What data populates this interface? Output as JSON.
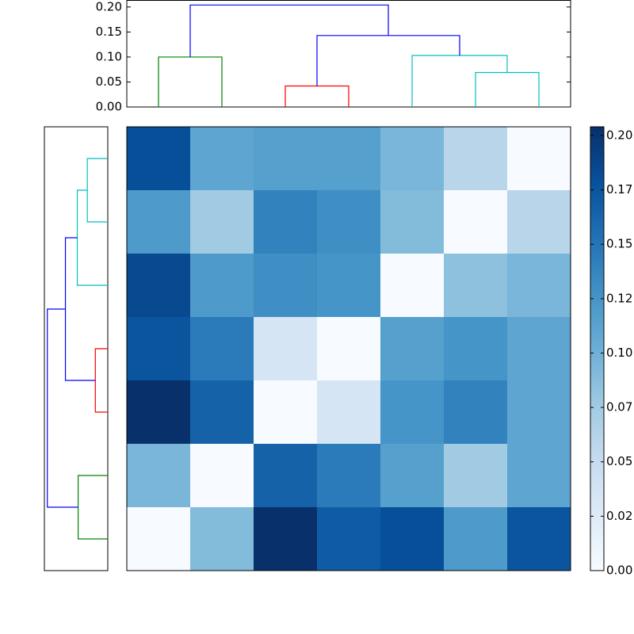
{
  "chart_data": [
    {
      "type": "dendrogram",
      "orientation": "top",
      "ylim": [
        0,
        0.214
      ],
      "yticks": [
        {
          "value": 0,
          "label": "0.00"
        },
        0.05,
        {
          "value": 0.1,
          "label": "0.10"
        },
        0.15,
        {
          "value": 0.2,
          "label": "0.20"
        }
      ],
      "xlim": [
        0,
        70
      ],
      "links": [
        {
          "color": "#008000",
          "icoord": [
            5,
            5,
            15,
            15
          ],
          "dcoord": [
            0,
            0.1,
            0.1,
            0
          ]
        },
        {
          "color": "#ff0000",
          "icoord": [
            25,
            25,
            35,
            35
          ],
          "dcoord": [
            0,
            0.042,
            0.042,
            0
          ]
        },
        {
          "color": "#00bfbf",
          "icoord": [
            55,
            55,
            65,
            65
          ],
          "dcoord": [
            0,
            0.069,
            0.069,
            0
          ]
        },
        {
          "color": "#00bfbf",
          "icoord": [
            45,
            45,
            60,
            60
          ],
          "dcoord": [
            0,
            0.103,
            0.103,
            0.069
          ]
        },
        {
          "color": "#0000ff",
          "icoord": [
            30,
            30,
            52.5,
            52.5
          ],
          "dcoord": [
            0.042,
            0.143,
            0.143,
            0.103
          ]
        },
        {
          "color": "#0000ff",
          "icoord": [
            10,
            10,
            41.25,
            41.25
          ],
          "dcoord": [
            0.1,
            0.204,
            0.204,
            0.143
          ]
        }
      ]
    },
    {
      "type": "dendrogram",
      "orientation": "left",
      "xlim": [
        0.214,
        0
      ],
      "ylim": [
        0,
        70
      ],
      "links": [
        {
          "color": "#008000",
          "icoord": [
            5,
            5,
            15,
            15
          ],
          "dcoord": [
            0,
            0.1,
            0.1,
            0
          ]
        },
        {
          "color": "#ff0000",
          "icoord": [
            25,
            25,
            35,
            35
          ],
          "dcoord": [
            0,
            0.042,
            0.042,
            0
          ]
        },
        {
          "color": "#00bfbf",
          "icoord": [
            55,
            55,
            65,
            65
          ],
          "dcoord": [
            0,
            0.069,
            0.069,
            0
          ]
        },
        {
          "color": "#00bfbf",
          "icoord": [
            45,
            45,
            60,
            60
          ],
          "dcoord": [
            0,
            0.103,
            0.103,
            0.069
          ]
        },
        {
          "color": "#0000ff",
          "icoord": [
            30,
            30,
            52.5,
            52.5
          ],
          "dcoord": [
            0.042,
            0.143,
            0.143,
            0.103
          ]
        },
        {
          "color": "#0000ff",
          "icoord": [
            10,
            10,
            41.25,
            41.25
          ],
          "dcoord": [
            0.1,
            0.204,
            0.204,
            0.143
          ]
        }
      ]
    },
    {
      "type": "heatmap",
      "colormap": [
        "#f7fbff",
        "#deebf7",
        "#c6dbef",
        "#9ecae1",
        "#6baed6",
        "#4292c6",
        "#2171b5",
        "#08519c",
        "#08306b"
      ],
      "clim": [
        0,
        0.204
      ],
      "cticks": [
        {
          "value": 0,
          "label": "0.00"
        },
        {
          "value": 0.025,
          "label": "0.02"
        },
        {
          "value": 0.05,
          "label": "0.05"
        },
        {
          "value": 0.075,
          "label": "0.07"
        },
        {
          "value": 0.1,
          "label": "0.10"
        },
        {
          "value": 0.125,
          "label": "0.12"
        },
        {
          "value": 0.15,
          "label": "0.15"
        },
        {
          "value": 0.175,
          "label": "0.17"
        },
        {
          "value": 0.2,
          "label": "0.20"
        }
      ],
      "z": [
        [
          0.18,
          0.11,
          0.115,
          0.115,
          0.095,
          0.06,
          0
        ],
        [
          0.12,
          0.075,
          0.14,
          0.13,
          0.09,
          0,
          0.06
        ],
        [
          0.185,
          0.12,
          0.13,
          0.125,
          0,
          0.085,
          0.095
        ],
        [
          0.175,
          0.145,
          0.035,
          0,
          0.115,
          0.125,
          0.11
        ],
        [
          0.204,
          0.165,
          0,
          0.035,
          0.125,
          0.14,
          0.11
        ],
        [
          0.095,
          0,
          0.165,
          0.145,
          0.115,
          0.075,
          0.11
        ],
        [
          0,
          0.09,
          0.204,
          0.17,
          0.18,
          0.12,
          0.175
        ]
      ]
    }
  ]
}
